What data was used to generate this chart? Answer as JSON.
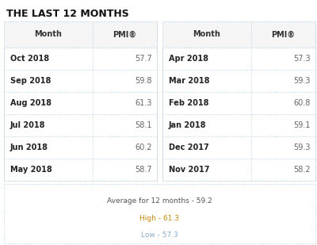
{
  "title": "THE LAST 12 MONTHS",
  "left_months": [
    "Oct 2018",
    "Sep 2018",
    "Aug 2018",
    "Jul 2018",
    "Jun 2018",
    "May 2018"
  ],
  "left_pmi": [
    "57.7",
    "59.8",
    "61.3",
    "58.1",
    "60.2",
    "58.7"
  ],
  "right_months": [
    "Apr 2018",
    "Mar 2018",
    "Feb 2018",
    "Jan 2018",
    "Dec 2017",
    "Nov 2017"
  ],
  "right_pmi": [
    "57.3",
    "59.3",
    "60.8",
    "59.1",
    "59.3",
    "58.2"
  ],
  "avg_text": "Average for 12 months - 59.2",
  "high_text": "High - 61.3",
  "low_text": "Low - 57.3",
  "bg_color": "#ffffff",
  "header_text_color": "#333333",
  "month_text_color": "#222222",
  "pmi_text_color": "#666666",
  "border_color": "#b0c8e0",
  "title_color": "#111111",
  "avg_color": "#555555",
  "high_color": "#c8860a",
  "low_color": "#88aacc",
  "header_col": "Month",
  "header_pmi": "PMI®"
}
